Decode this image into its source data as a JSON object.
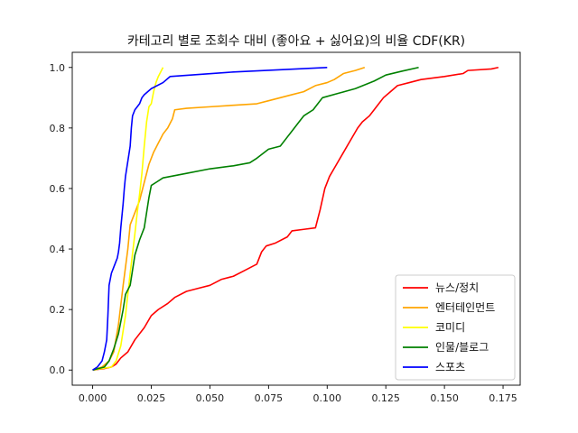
{
  "chart_data": {
    "type": "line",
    "title": "카테고리 별로 조회수 대비 (좋아요 + 싫어요)의 비율 CDF(KR)",
    "xlabel": "",
    "ylabel": "",
    "xlim": [
      -0.0087,
      0.1823
    ],
    "ylim": [
      -0.05,
      1.05
    ],
    "x_ticks": [
      0.0,
      0.025,
      0.05,
      0.075,
      0.1,
      0.125,
      0.15,
      0.175
    ],
    "x_tick_labels": [
      "0.000",
      "0.025",
      "0.050",
      "0.075",
      "0.100",
      "0.125",
      "0.150",
      "0.175"
    ],
    "y_ticks": [
      0.0,
      0.2,
      0.4,
      0.6,
      0.8,
      1.0
    ],
    "y_tick_labels": [
      "0.0",
      "0.2",
      "0.4",
      "0.6",
      "0.8",
      "1.0"
    ],
    "grid": false,
    "legend": "lower-right",
    "series": [
      {
        "name": "뉴스/정치",
        "color": "#ff0000",
        "points": [
          [
            0.0,
            0.0
          ],
          [
            0.005,
            0.005
          ],
          [
            0.008,
            0.01
          ],
          [
            0.01,
            0.02
          ],
          [
            0.012,
            0.04
          ],
          [
            0.015,
            0.06
          ],
          [
            0.018,
            0.1
          ],
          [
            0.022,
            0.14
          ],
          [
            0.025,
            0.18
          ],
          [
            0.028,
            0.2
          ],
          [
            0.032,
            0.22
          ],
          [
            0.035,
            0.24
          ],
          [
            0.04,
            0.26
          ],
          [
            0.045,
            0.27
          ],
          [
            0.05,
            0.28
          ],
          [
            0.055,
            0.3
          ],
          [
            0.06,
            0.31
          ],
          [
            0.065,
            0.33
          ],
          [
            0.07,
            0.35
          ],
          [
            0.072,
            0.39
          ],
          [
            0.074,
            0.41
          ],
          [
            0.078,
            0.42
          ],
          [
            0.083,
            0.44
          ],
          [
            0.085,
            0.46
          ],
          [
            0.09,
            0.465
          ],
          [
            0.095,
            0.47
          ],
          [
            0.096,
            0.5
          ],
          [
            0.097,
            0.53
          ],
          [
            0.099,
            0.6
          ],
          [
            0.101,
            0.64
          ],
          [
            0.104,
            0.68
          ],
          [
            0.107,
            0.72
          ],
          [
            0.11,
            0.76
          ],
          [
            0.113,
            0.8
          ],
          [
            0.115,
            0.82
          ],
          [
            0.118,
            0.84
          ],
          [
            0.12,
            0.86
          ],
          [
            0.122,
            0.88
          ],
          [
            0.124,
            0.9
          ],
          [
            0.127,
            0.92
          ],
          [
            0.13,
            0.94
          ],
          [
            0.135,
            0.95
          ],
          [
            0.14,
            0.96
          ],
          [
            0.15,
            0.97
          ],
          [
            0.158,
            0.98
          ],
          [
            0.16,
            0.99
          ],
          [
            0.17,
            0.995
          ],
          [
            0.173,
            1.0
          ]
        ]
      },
      {
        "name": "엔터테인먼트",
        "color": "#ffa500",
        "points": [
          [
            0.0,
            0.0
          ],
          [
            0.004,
            0.01
          ],
          [
            0.007,
            0.03
          ],
          [
            0.009,
            0.06
          ],
          [
            0.011,
            0.15
          ],
          [
            0.013,
            0.28
          ],
          [
            0.015,
            0.4
          ],
          [
            0.016,
            0.48
          ],
          [
            0.018,
            0.52
          ],
          [
            0.02,
            0.56
          ],
          [
            0.022,
            0.62
          ],
          [
            0.024,
            0.68
          ],
          [
            0.026,
            0.72
          ],
          [
            0.028,
            0.75
          ],
          [
            0.03,
            0.78
          ],
          [
            0.032,
            0.8
          ],
          [
            0.034,
            0.83
          ],
          [
            0.035,
            0.86
          ],
          [
            0.04,
            0.865
          ],
          [
            0.05,
            0.87
          ],
          [
            0.06,
            0.875
          ],
          [
            0.07,
            0.88
          ],
          [
            0.075,
            0.89
          ],
          [
            0.08,
            0.9
          ],
          [
            0.085,
            0.91
          ],
          [
            0.09,
            0.92
          ],
          [
            0.095,
            0.94
          ],
          [
            0.1,
            0.95
          ],
          [
            0.103,
            0.96
          ],
          [
            0.107,
            0.98
          ],
          [
            0.112,
            0.99
          ],
          [
            0.116,
            1.0
          ]
        ]
      },
      {
        "name": "코미디",
        "color": "#ffff00",
        "points": [
          [
            0.0,
            0.0
          ],
          [
            0.008,
            0.01
          ],
          [
            0.01,
            0.03
          ],
          [
            0.012,
            0.08
          ],
          [
            0.014,
            0.18
          ],
          [
            0.016,
            0.32
          ],
          [
            0.018,
            0.45
          ],
          [
            0.019,
            0.52
          ],
          [
            0.02,
            0.58
          ],
          [
            0.021,
            0.65
          ],
          [
            0.022,
            0.74
          ],
          [
            0.023,
            0.82
          ],
          [
            0.024,
            0.87
          ],
          [
            0.025,
            0.88
          ],
          [
            0.026,
            0.92
          ],
          [
            0.027,
            0.95
          ],
          [
            0.028,
            0.97
          ],
          [
            0.03,
            1.0
          ]
        ]
      },
      {
        "name": "인물/블로그",
        "color": "#008000",
        "points": [
          [
            0.0,
            0.0
          ],
          [
            0.005,
            0.01
          ],
          [
            0.007,
            0.03
          ],
          [
            0.009,
            0.07
          ],
          [
            0.011,
            0.12
          ],
          [
            0.013,
            0.2
          ],
          [
            0.014,
            0.25
          ],
          [
            0.016,
            0.28
          ],
          [
            0.017,
            0.33
          ],
          [
            0.018,
            0.38
          ],
          [
            0.02,
            0.43
          ],
          [
            0.022,
            0.47
          ],
          [
            0.023,
            0.52
          ],
          [
            0.024,
            0.57
          ],
          [
            0.025,
            0.61
          ],
          [
            0.027,
            0.62
          ],
          [
            0.03,
            0.635
          ],
          [
            0.04,
            0.65
          ],
          [
            0.05,
            0.665
          ],
          [
            0.06,
            0.675
          ],
          [
            0.067,
            0.685
          ],
          [
            0.07,
            0.7
          ],
          [
            0.075,
            0.73
          ],
          [
            0.08,
            0.74
          ],
          [
            0.083,
            0.77
          ],
          [
            0.085,
            0.79
          ],
          [
            0.088,
            0.82
          ],
          [
            0.09,
            0.84
          ],
          [
            0.092,
            0.85
          ],
          [
            0.094,
            0.86
          ],
          [
            0.095,
            0.87
          ],
          [
            0.096,
            0.88
          ],
          [
            0.098,
            0.9
          ],
          [
            0.105,
            0.915
          ],
          [
            0.112,
            0.93
          ],
          [
            0.12,
            0.955
          ],
          [
            0.125,
            0.975
          ],
          [
            0.132,
            0.988
          ],
          [
            0.139,
            1.0
          ]
        ]
      },
      {
        "name": "스포츠",
        "color": "#0000ff",
        "points": [
          [
            0.0,
            0.0
          ],
          [
            0.002,
            0.01
          ],
          [
            0.004,
            0.03
          ],
          [
            0.005,
            0.06
          ],
          [
            0.006,
            0.1
          ],
          [
            0.0065,
            0.18
          ],
          [
            0.007,
            0.28
          ],
          [
            0.008,
            0.32
          ],
          [
            0.009,
            0.34
          ],
          [
            0.01,
            0.36
          ],
          [
            0.0105,
            0.37
          ],
          [
            0.011,
            0.39
          ],
          [
            0.0115,
            0.42
          ],
          [
            0.012,
            0.47
          ],
          [
            0.013,
            0.55
          ],
          [
            0.0135,
            0.6
          ],
          [
            0.014,
            0.64
          ],
          [
            0.015,
            0.69
          ],
          [
            0.016,
            0.74
          ],
          [
            0.0165,
            0.8
          ],
          [
            0.017,
            0.84
          ],
          [
            0.018,
            0.86
          ],
          [
            0.019,
            0.87
          ],
          [
            0.02,
            0.88
          ],
          [
            0.021,
            0.9
          ],
          [
            0.022,
            0.91
          ],
          [
            0.025,
            0.93
          ],
          [
            0.03,
            0.95
          ],
          [
            0.033,
            0.97
          ],
          [
            0.06,
            0.985
          ],
          [
            0.1,
            1.0
          ]
        ]
      }
    ]
  }
}
